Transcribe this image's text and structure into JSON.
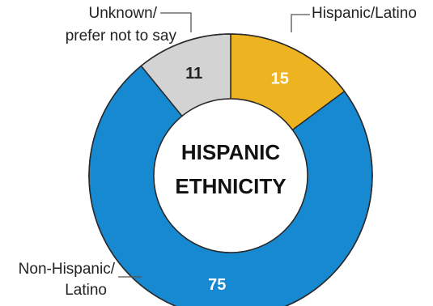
{
  "chart_data": {
    "type": "pie",
    "center_title": [
      "HISPANIC",
      "ETHNICITY"
    ],
    "slices": [
      {
        "label": "Hispanic/Latino",
        "label_lines": [
          "Hispanic/Latino"
        ],
        "value": 15,
        "color": "#EDB321",
        "value_color": "#ffffff"
      },
      {
        "label": "Non-Hispanic/ Latino",
        "label_lines": [
          "Non-Hispanic/",
          "Latino"
        ],
        "value": 75,
        "color": "#1689D1",
        "value_color": "#ffffff"
      },
      {
        "label": "Unknown/ prefer not to say",
        "label_lines": [
          "Unknown/",
          "prefer not to say"
        ],
        "value": 11,
        "color": "#D3D3D3",
        "value_color": "#222222"
      }
    ],
    "colors": {
      "ring_stroke": "#2a2a2a",
      "leader": "#555555"
    }
  }
}
